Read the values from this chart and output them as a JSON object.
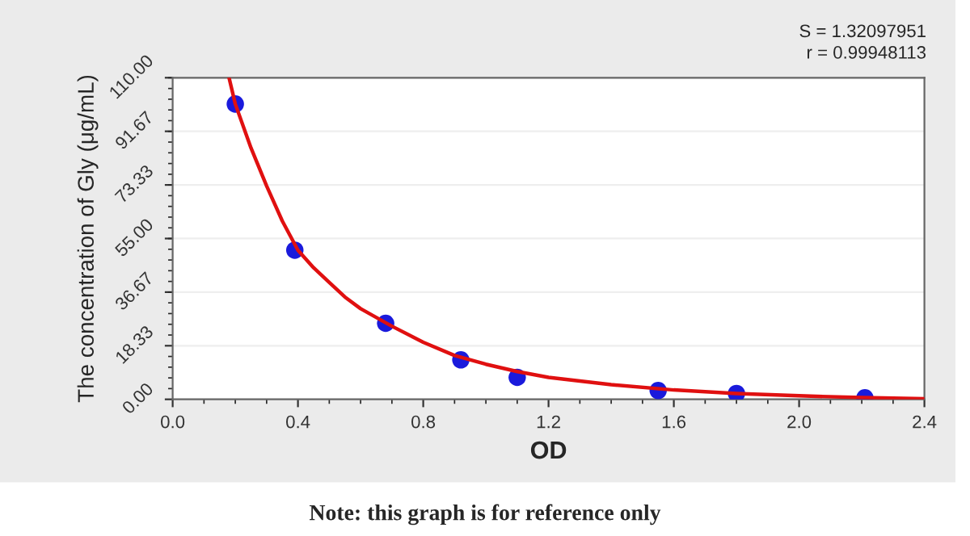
{
  "chart_data": {
    "type": "scatter",
    "xlabel": "OD",
    "ylabel": "The concentration of Gly (μg/mL)",
    "series": [
      {
        "marker": "circle",
        "color": "#1a1adc",
        "x": [
          0.2,
          0.39,
          0.68,
          0.92,
          1.1,
          1.55,
          1.8,
          2.21
        ],
        "values": [
          101,
          51,
          26,
          13.5,
          7.5,
          3,
          2,
          0.5
        ]
      },
      {
        "type": "line",
        "marker": "none",
        "color": "#e01010",
        "x": [
          0.18,
          0.2,
          0.25,
          0.3,
          0.35,
          0.4,
          0.45,
          0.5,
          0.55,
          0.6,
          0.7,
          0.8,
          0.9,
          1.0,
          1.1,
          1.2,
          1.4,
          1.6,
          1.8,
          2.0,
          2.2,
          2.4
        ],
        "values": [
          110,
          101,
          86,
          73,
          61,
          51,
          45,
          40,
          35,
          31,
          25,
          19.5,
          15,
          12,
          9.5,
          7.5,
          5,
          3.2,
          2,
          1.2,
          0.6,
          0.2
        ]
      }
    ],
    "xlim": [
      0,
      2.4
    ],
    "xticks": [
      {
        "value": 0,
        "label": "0.0"
      },
      0.4,
      0.8,
      1.2,
      1.6,
      {
        "value": 2,
        "label": "2.0"
      },
      2.4
    ],
    "ylim": [
      0,
      110
    ],
    "yticks": [
      {
        "value": 0,
        "label": "0.00"
      },
      18.33,
      36.67,
      {
        "value": 55,
        "label": "55.00"
      },
      73.33,
      91.67,
      {
        "value": 110,
        "label": "110.00"
      }
    ],
    "grid": "y",
    "annotations": [
      "S = 1.32097951",
      "r = 0.99948113",
      "Note: this graph is for reference only"
    ]
  }
}
